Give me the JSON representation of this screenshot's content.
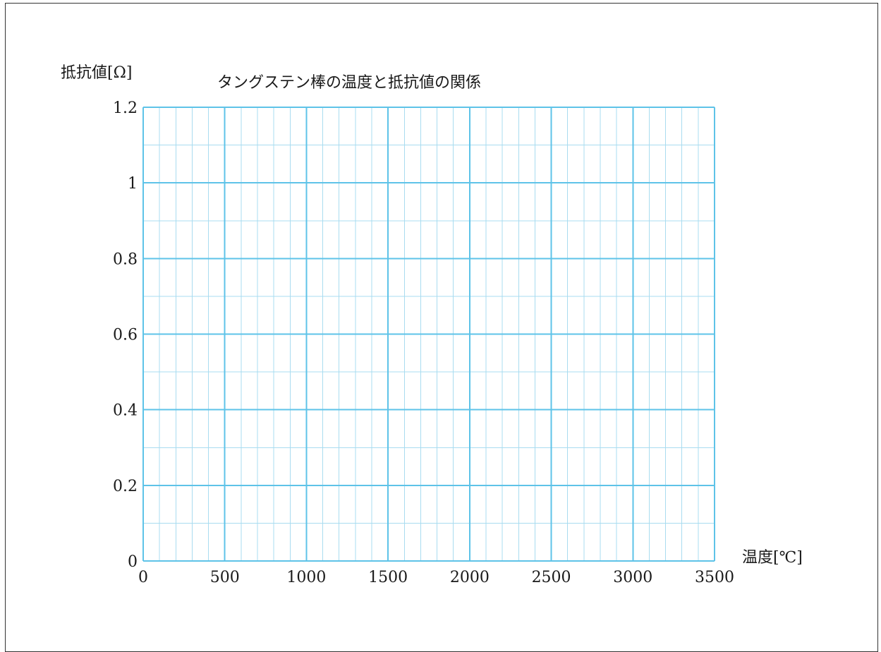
{
  "chart_data": {
    "type": "line",
    "title": "タングステン棒の温度と抵抗値の関係",
    "xlabel": "温度[℃]",
    "ylabel": "抵抗値[Ω]",
    "xlim": [
      0,
      3500
    ],
    "ylim": [
      0,
      1.2
    ],
    "xticks": [
      0,
      500,
      1000,
      1500,
      2000,
      2500,
      3000,
      3500
    ],
    "xtick_labels": [
      "0",
      "500",
      "1000",
      "1500",
      "2000",
      "2500",
      "3000",
      "3500"
    ],
    "yticks": [
      0,
      0.2,
      0.4,
      0.6,
      0.8,
      1,
      1.2
    ],
    "ytick_labels": [
      "0",
      "0.2",
      "0.4",
      "0.6",
      "0.8",
      "1",
      "1.2"
    ],
    "x_minor_step": 100,
    "y_minor_step": 0.1,
    "grid": true,
    "series": []
  },
  "colors": {
    "grid_major": "#5ec3e8",
    "grid_minor": "#a9dcf0",
    "text": "#1a1a1a",
    "frame": "#333333"
  }
}
